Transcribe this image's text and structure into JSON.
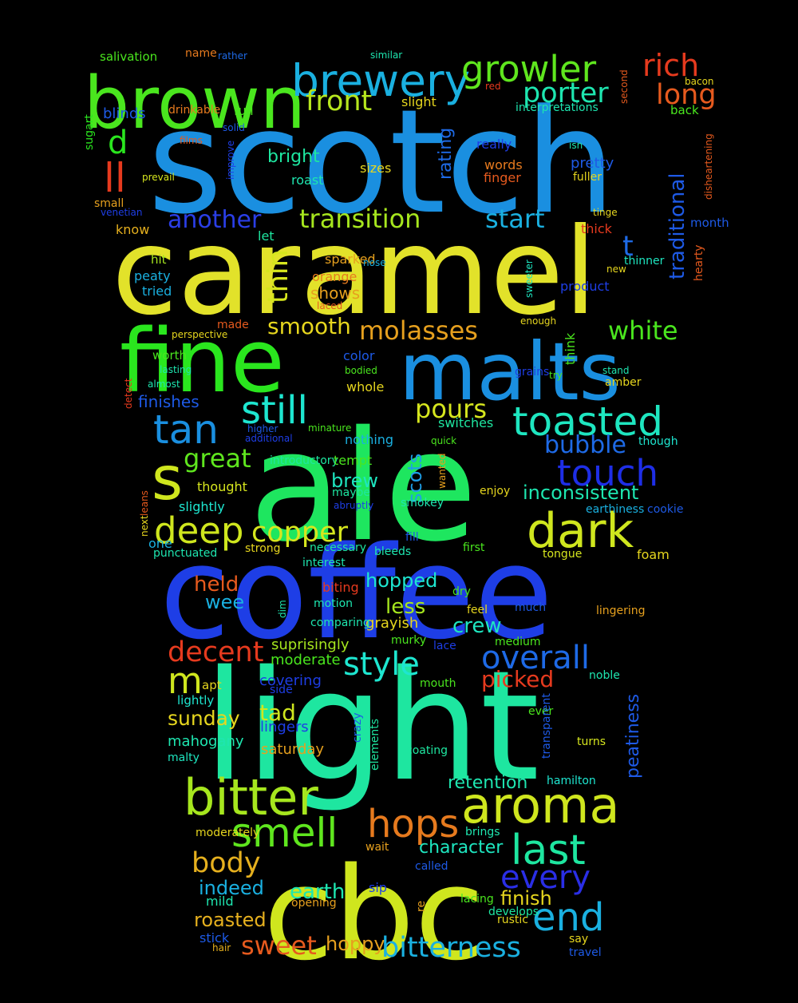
{
  "background": "#000000",
  "words": [
    {
      "t": "scotch",
      "c": "#1a8fe0"
    },
    {
      "t": "caramel",
      "c": "#e2e22a"
    },
    {
      "t": "ale",
      "c": "#1ee65f"
    },
    {
      "t": "coffee",
      "c": "#1e3ee6"
    },
    {
      "t": "light",
      "c": "#1ee6a0"
    },
    {
      "t": "cbc",
      "c": "#cfe61e"
    },
    {
      "t": "fine",
      "c": "#2ae61e"
    },
    {
      "t": "malts",
      "c": "#1a8fe0"
    },
    {
      "t": "brown",
      "c": "#4ae61e"
    },
    {
      "t": "brewery",
      "c": "#1ab0e0"
    },
    {
      "t": "growler",
      "c": "#5fe61e"
    },
    {
      "t": "rich",
      "c": "#e63a1e"
    },
    {
      "t": "porter",
      "c": "#1ee6b0"
    },
    {
      "t": "long",
      "c": "#e65a1e"
    },
    {
      "t": "front",
      "c": "#b6e61e"
    },
    {
      "t": "d",
      "c": "#2ae61e"
    },
    {
      "t": "ll",
      "c": "#e63a1e"
    },
    {
      "t": "another",
      "c": "#2a3ee6"
    },
    {
      "t": "transition",
      "c": "#a6e61e"
    },
    {
      "t": "start",
      "c": "#1ab0e0"
    },
    {
      "t": "t",
      "c": "#1e6ae6"
    },
    {
      "t": "traditional",
      "c": "#1e5ae6"
    },
    {
      "t": "thin",
      "c": "#d6e61e"
    },
    {
      "t": "smooth",
      "c": "#e6d61e"
    },
    {
      "t": "molasses",
      "c": "#e6a01e"
    },
    {
      "t": "white",
      "c": "#4ae61e"
    },
    {
      "t": "tan",
      "c": "#1a8fe0"
    },
    {
      "t": "still",
      "c": "#1ee6d0"
    },
    {
      "t": "toasted",
      "c": "#1ee6c0"
    },
    {
      "t": "s",
      "c": "#cfe61e"
    },
    {
      "t": "pours",
      "c": "#d6e61e"
    },
    {
      "t": "bubble",
      "c": "#1e6ae6"
    },
    {
      "t": "touch",
      "c": "#1e2ee6"
    },
    {
      "t": "great",
      "c": "#5fe61e"
    },
    {
      "t": "dark",
      "c": "#cfe61e"
    },
    {
      "t": "deep",
      "c": "#cfe61e"
    },
    {
      "t": "copper",
      "c": "#d6e61e"
    },
    {
      "t": "scots",
      "c": "#1e9ee6"
    },
    {
      "t": "inconsistent",
      "c": "#1ee6b0"
    },
    {
      "t": "brew",
      "c": "#1ee6c0"
    },
    {
      "t": "decent",
      "c": "#e63a1e"
    },
    {
      "t": "style",
      "c": "#1ee6d0"
    },
    {
      "t": "overall",
      "c": "#1e6ae6"
    },
    {
      "t": "m",
      "c": "#cfe61e"
    },
    {
      "t": "held",
      "c": "#e65a1e"
    },
    {
      "t": "wee",
      "c": "#1ab0e0"
    },
    {
      "t": "hopped",
      "c": "#1ee6d0"
    },
    {
      "t": "less",
      "c": "#a6e61e"
    },
    {
      "t": "crew",
      "c": "#1ee6c0"
    },
    {
      "t": "picked",
      "c": "#e63a1e"
    },
    {
      "t": "tad",
      "c": "#cfe61e"
    },
    {
      "t": "sunday",
      "c": "#e6d61e"
    },
    {
      "t": "bitter",
      "c": "#a6e61e"
    },
    {
      "t": "aroma",
      "c": "#cfe61e"
    },
    {
      "t": "smell",
      "c": "#5fe61e"
    },
    {
      "t": "hops",
      "c": "#e67a1e"
    },
    {
      "t": "last",
      "c": "#1ee6a0"
    },
    {
      "t": "body",
      "c": "#e6b01e"
    },
    {
      "t": "every",
      "c": "#2a2ee6"
    },
    {
      "t": "end",
      "c": "#1ab0e0"
    },
    {
      "t": "earth",
      "c": "#1ee6b0"
    },
    {
      "t": "finish",
      "c": "#e6d61e"
    },
    {
      "t": "indeed",
      "c": "#1ab0e0"
    },
    {
      "t": "roasted",
      "c": "#e6b01e"
    },
    {
      "t": "sweet",
      "c": "#e65a1e"
    },
    {
      "t": "hoppy",
      "c": "#e6a01e"
    },
    {
      "t": "bitterness",
      "c": "#1ab0e0"
    },
    {
      "t": "character",
      "c": "#1ee6c0"
    },
    {
      "t": "retention",
      "c": "#1ee6b0"
    },
    {
      "t": "peatiness",
      "c": "#1e5ae6"
    },
    {
      "t": "mahogany",
      "c": "#1ee6b0"
    },
    {
      "t": "saturday",
      "c": "#e6a01e"
    },
    {
      "t": "suprisingly",
      "c": "#a6e61e"
    },
    {
      "t": "moderate",
      "c": "#4ae61e"
    },
    {
      "t": "covering",
      "c": "#1e3ee6"
    },
    {
      "t": "lingers",
      "c": "#1e3ee6"
    },
    {
      "t": "grayish",
      "c": "#e6d61e"
    },
    {
      "t": "salivation",
      "c": "#4ae61e"
    },
    {
      "t": "name",
      "c": "#e67a1e"
    },
    {
      "t": "rather",
      "c": "#1e6ae6"
    },
    {
      "t": "similar",
      "c": "#1ee6b0"
    },
    {
      "t": "red",
      "c": "#e63a1e"
    },
    {
      "t": "second",
      "c": "#e65a1e"
    },
    {
      "t": "bacon",
      "c": "#e6d61e"
    },
    {
      "t": "blinds",
      "c": "#1e5ae6"
    },
    {
      "t": "drinkable",
      "c": "#e67a1e"
    },
    {
      "t": "full",
      "c": "#4ae61e"
    },
    {
      "t": "slight",
      "c": "#e6d61e"
    },
    {
      "t": "interpretations",
      "c": "#1ee6b0"
    },
    {
      "t": "back",
      "c": "#4ae61e"
    },
    {
      "t": "sugart",
      "c": "#2ae61e"
    },
    {
      "t": "solid",
      "c": "#1e5ae6"
    },
    {
      "t": "films",
      "c": "#e65a1e"
    },
    {
      "t": "improve",
      "c": "#1e3ee6"
    },
    {
      "t": "really",
      "c": "#1e3ee6"
    },
    {
      "t": "isn",
      "c": "#1ee6b0"
    },
    {
      "t": "disheartening",
      "c": "#e65a1e"
    },
    {
      "t": "bright",
      "c": "#1ee6a0"
    },
    {
      "t": "rating",
      "c": "#1e6ae6"
    },
    {
      "t": "sizes",
      "c": "#e6d61e"
    },
    {
      "t": "words",
      "c": "#e67a1e"
    },
    {
      "t": "pretty",
      "c": "#1e5ae6"
    },
    {
      "t": "prevail",
      "c": "#d6e61e"
    },
    {
      "t": "roast",
      "c": "#1ee6b0"
    },
    {
      "t": "finger",
      "c": "#e65a1e"
    },
    {
      "t": "fuller",
      "c": "#e6d61e"
    },
    {
      "t": "small",
      "c": "#e6a01e"
    },
    {
      "t": "venetian",
      "c": "#1e3ee6"
    },
    {
      "t": "tinge",
      "c": "#e6d61e"
    },
    {
      "t": "know",
      "c": "#e6b01e"
    },
    {
      "t": "thick",
      "c": "#e63a1e"
    },
    {
      "t": "month",
      "c": "#1e5ae6"
    },
    {
      "t": "let",
      "c": "#1ee6a0"
    },
    {
      "t": "hit",
      "c": "#a6e61e"
    },
    {
      "t": "sparked",
      "c": "#e6a01e"
    },
    {
      "t": "nose",
      "c": "#1ab0e0"
    },
    {
      "t": "sweeter",
      "c": "#1ee6c0"
    },
    {
      "t": "thinner",
      "c": "#1ee6c0"
    },
    {
      "t": "new",
      "c": "#e6d61e"
    },
    {
      "t": "hearty",
      "c": "#e65a1e"
    },
    {
      "t": "peaty",
      "c": "#1ab0e0"
    },
    {
      "t": "orange",
      "c": "#e67a1e"
    },
    {
      "t": "shows",
      "c": "#e6a01e"
    },
    {
      "t": "tried",
      "c": "#1ab0e0"
    },
    {
      "t": "laced",
      "c": "#e65a1e"
    },
    {
      "t": "product",
      "c": "#1e3ee6"
    },
    {
      "t": "perspective",
      "c": "#e6d61e"
    },
    {
      "t": "made",
      "c": "#e65a1e"
    },
    {
      "t": "enough",
      "c": "#e6d61e"
    },
    {
      "t": "think",
      "c": "#4ae61e"
    },
    {
      "t": "worth",
      "c": "#4ae61e"
    },
    {
      "t": "color",
      "c": "#1e5ae6"
    },
    {
      "t": "lasting",
      "c": "#1ee6b0"
    },
    {
      "t": "bodied",
      "c": "#4ae61e"
    },
    {
      "t": "grains",
      "c": "#1e3ee6"
    },
    {
      "t": "try",
      "c": "#4ae61e"
    },
    {
      "t": "stand",
      "c": "#1ee6b0"
    },
    {
      "t": "amber",
      "c": "#e6d61e"
    },
    {
      "t": "almost",
      "c": "#1ee6b0"
    },
    {
      "t": "whole",
      "c": "#e6d61e"
    },
    {
      "t": "detect",
      "c": "#e63a1e"
    },
    {
      "t": "finishes",
      "c": "#1e5ae6"
    },
    {
      "t": "switches",
      "c": "#1ee6a0"
    },
    {
      "t": "higher",
      "c": "#1e5ae6"
    },
    {
      "t": "minature",
      "c": "#4ae61e"
    },
    {
      "t": "additional",
      "c": "#1e3ee6"
    },
    {
      "t": "though",
      "c": "#1ee6d0"
    },
    {
      "t": "nothing",
      "c": "#1ab0e0"
    },
    {
      "t": "quick",
      "c": "#4ae61e"
    },
    {
      "t": "leans",
      "c": "#e65a1e"
    },
    {
      "t": "introductory",
      "c": "#1ee6a0"
    },
    {
      "t": "tempt",
      "c": "#4ae61e"
    },
    {
      "t": "wanted",
      "c": "#e6a01e"
    },
    {
      "t": "thought",
      "c": "#d6e61e"
    },
    {
      "t": "enjoy",
      "c": "#e6d61e"
    },
    {
      "t": "maybe",
      "c": "#1ee6a0"
    },
    {
      "t": "abruptly",
      "c": "#1e3ee6"
    },
    {
      "t": "smokey",
      "c": "#1ee6b0"
    },
    {
      "t": "slightly",
      "c": "#1ee6d0"
    },
    {
      "t": "earthiness",
      "c": "#1ab0e0"
    },
    {
      "t": "cookie",
      "c": "#1e5ae6"
    },
    {
      "t": "next",
      "c": "#e6d61e"
    },
    {
      "t": "fill",
      "c": "#1e5ae6"
    },
    {
      "t": "one",
      "c": "#1ab0e0"
    },
    {
      "t": "necessary",
      "c": "#1ee6a0"
    },
    {
      "t": "strong",
      "c": "#e6d61e"
    },
    {
      "t": "first",
      "c": "#4ae61e"
    },
    {
      "t": "punctuated",
      "c": "#1ee6b0"
    },
    {
      "t": "bleeds",
      "c": "#1ee6b0"
    },
    {
      "t": "tongue",
      "c": "#d6e61e"
    },
    {
      "t": "interest",
      "c": "#1ee6b0"
    },
    {
      "t": "foam",
      "c": "#e6d61e"
    },
    {
      "t": "dim",
      "c": "#1ee6b0"
    },
    {
      "t": "biting",
      "c": "#e63a1e"
    },
    {
      "t": "dry",
      "c": "#4ae61e"
    },
    {
      "t": "motion",
      "c": "#1ee6b0"
    },
    {
      "t": "feel",
      "c": "#e6d61e"
    },
    {
      "t": "much",
      "c": "#1e5ae6"
    },
    {
      "t": "lingering",
      "c": "#e6a01e"
    },
    {
      "t": "comparing",
      "c": "#1ee6b0"
    },
    {
      "t": "murky",
      "c": "#4ae61e"
    },
    {
      "t": "lace",
      "c": "#1e3ee6"
    },
    {
      "t": "medium",
      "c": "#4ae61e"
    },
    {
      "t": "noble",
      "c": "#1ee6b0"
    },
    {
      "t": "apt",
      "c": "#e6d61e"
    },
    {
      "t": "side",
      "c": "#1e3ee6"
    },
    {
      "t": "mouth",
      "c": "#4ae61e"
    },
    {
      "t": "lightly",
      "c": "#1ee6d0"
    },
    {
      "t": "ever",
      "c": "#4ae61e"
    },
    {
      "t": "crazy",
      "c": "#1e5ae6"
    },
    {
      "t": "elements",
      "c": "#1ee6a0"
    },
    {
      "t": "transparent",
      "c": "#1e5ae6"
    },
    {
      "t": "turns",
      "c": "#d6e61e"
    },
    {
      "t": "malty",
      "c": "#1ee6c0"
    },
    {
      "t": "coating",
      "c": "#1ee6a0"
    },
    {
      "t": "hamilton",
      "c": "#1ee6d0"
    },
    {
      "t": "moderately",
      "c": "#e6d61e"
    },
    {
      "t": "wait",
      "c": "#e6a01e"
    },
    {
      "t": "brings",
      "c": "#1ee6b0"
    },
    {
      "t": "called",
      "c": "#1e5ae6"
    },
    {
      "t": "sip",
      "c": "#1e3ee6"
    },
    {
      "t": "re",
      "c": "#e6a01e"
    },
    {
      "t": "lacing",
      "c": "#4ae61e"
    },
    {
      "t": "mild",
      "c": "#1ee6b0"
    },
    {
      "t": "opening",
      "c": "#e6a01e"
    },
    {
      "t": "develops",
      "c": "#1ee6a0"
    },
    {
      "t": "rustic",
      "c": "#e6d61e"
    },
    {
      "t": "stick",
      "c": "#1e5ae6"
    },
    {
      "t": "hair",
      "c": "#e6b01e"
    },
    {
      "t": "say",
      "c": "#e6d61e"
    },
    {
      "t": "travel",
      "c": "#1e5ae6"
    },
    {
      "t": "see",
      "c": "#1ee6b0"
    }
  ]
}
